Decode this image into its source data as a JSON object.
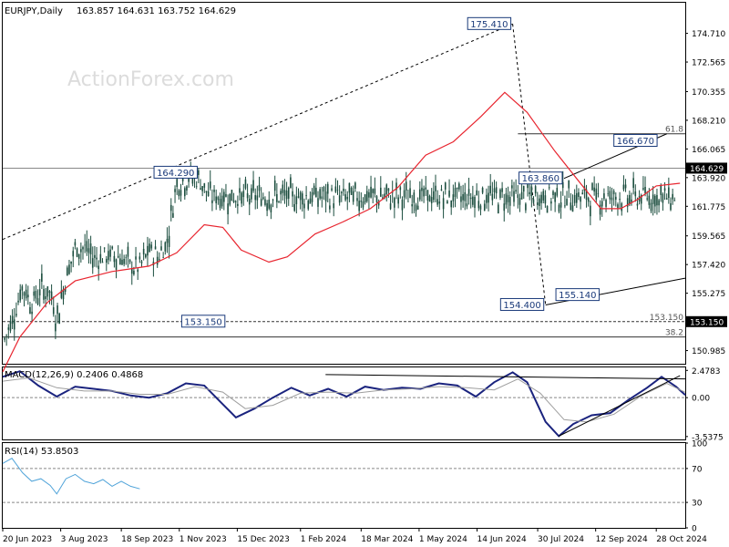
{
  "header": {
    "symbol": "EURJPY,Daily",
    "ohlc": "163.857 164.631 163.752 164.629"
  },
  "watermark": "ActionForex.com",
  "chart_data": [
    {
      "type": "candlestick",
      "panel": "price",
      "current_price": 164.629,
      "current_price_label": "164.629",
      "ylim": [
        150.0,
        177.0
      ],
      "y_ticks": [
        {
          "value": 174.71,
          "label": "174.710"
        },
        {
          "value": 172.565,
          "label": "172.565"
        },
        {
          "value": 170.355,
          "label": "170.355"
        },
        {
          "value": 168.21,
          "label": "168.210"
        },
        {
          "value": 166.065,
          "label": "166.065"
        },
        {
          "value": 163.92,
          "label": "163.920"
        },
        {
          "value": 161.775,
          "label": "161.775"
        },
        {
          "value": 159.565,
          "label": "159.565"
        },
        {
          "value": 157.42,
          "label": "157.420"
        },
        {
          "value": 155.275,
          "label": "155.275"
        },
        {
          "value": 153.065,
          "label": "153.065"
        },
        {
          "value": 150.985,
          "label": "150.985"
        }
      ],
      "price_path": [
        [
          "2023-06-20",
          151.5
        ],
        [
          "2023-06-28",
          153.5
        ],
        [
          "2023-07-05",
          155.8
        ],
        [
          "2023-07-12",
          154.5
        ],
        [
          "2023-07-19",
          155.6
        ],
        [
          "2023-07-26",
          155.3
        ],
        [
          "2023-07-31",
          153.3
        ],
        [
          "2023-08-07",
          156.5
        ],
        [
          "2023-08-14",
          158.6
        ],
        [
          "2023-08-21",
          158.7
        ],
        [
          "2023-08-28",
          157.9
        ],
        [
          "2023-09-04",
          158.0
        ],
        [
          "2023-09-11",
          158.1
        ],
        [
          "2023-09-18",
          158.0
        ],
        [
          "2023-09-25",
          157.3
        ],
        [
          "2023-10-02",
          157.2
        ],
        [
          "2023-10-09",
          158.5
        ],
        [
          "2023-10-16",
          158.0
        ],
        [
          "2023-10-23",
          159.2
        ],
        [
          "2023-10-30",
          163.7
        ],
        [
          "2023-11-03",
          163.6
        ],
        [
          "2023-11-10",
          164.0
        ],
        [
          "2023-11-17",
          163.7
        ],
        [
          "2023-11-24",
          162.5
        ]
      ],
      "moving_average": {
        "name": "",
        "color": "#e8252f",
        "values": [
          [
            "2023-06-20",
            149.4
          ],
          [
            "2023-07-03",
            152.0
          ],
          [
            "2023-07-24",
            154.6
          ],
          [
            "2023-08-14",
            156.2
          ],
          [
            "2023-09-11",
            156.9
          ],
          [
            "2023-10-09",
            157.3
          ],
          [
            "2023-10-30",
            158.3
          ],
          [
            "2023-11-20",
            160.4
          ],
          [
            "2023-12-04",
            160.2
          ],
          [
            "2023-12-18",
            158.5
          ],
          [
            "2024-01-08",
            157.6
          ],
          [
            "2024-01-22",
            158.0
          ],
          [
            "2024-02-12",
            159.7
          ],
          [
            "2024-03-04",
            160.6
          ],
          [
            "2024-03-25",
            161.6
          ],
          [
            "2024-04-15",
            163.2
          ],
          [
            "2024-05-06",
            165.6
          ],
          [
            "2024-05-27",
            166.6
          ],
          [
            "2024-06-17",
            168.5
          ],
          [
            "2024-07-05",
            170.3
          ],
          [
            "2024-07-22",
            168.8
          ],
          [
            "2024-08-12",
            165.9
          ],
          [
            "2024-09-02",
            163.3
          ],
          [
            "2024-09-16",
            161.6
          ],
          [
            "2024-10-01",
            161.6
          ],
          [
            "2024-10-14",
            162.3
          ],
          [
            "2024-10-28",
            163.3
          ],
          [
            "2024-11-15",
            163.5
          ]
        ]
      },
      "annotations": [
        {
          "label": "175.410",
          "date": "2024-07-11",
          "value": 175.41,
          "side": "left"
        },
        {
          "label": "164.290",
          "date": "2023-11-16",
          "value": 164.29,
          "side": "left"
        },
        {
          "label": "153.150",
          "date": "2023-12-07",
          "value": 153.15,
          "side": "left"
        },
        {
          "label": "163.860",
          "date": "2024-08-19",
          "value": 163.86,
          "side": "left"
        },
        {
          "label": "166.670",
          "date": "2024-10-30",
          "value": 166.67,
          "side": "left"
        },
        {
          "label": "154.400",
          "date": "2024-08-05",
          "value": 154.4,
          "side": "left"
        },
        {
          "label": "155.140",
          "date": "2024-09-16",
          "value": 155.14,
          "side": "left"
        }
      ],
      "trendlines": [
        {
          "style": "dashed",
          "from": [
            "2023-06-20",
            159.3
          ],
          "to": [
            "2024-07-11",
            175.41
          ]
        },
        {
          "style": "dashed",
          "from": [
            "2024-07-11",
            175.41
          ],
          "to": [
            "2024-08-05",
            154.4
          ]
        },
        {
          "style": "solid",
          "from": [
            "2024-08-19",
            163.86
          ],
          "to": [
            "2024-11-05",
            167.2
          ]
        },
        {
          "style": "solid",
          "from": [
            "2024-08-05",
            154.4
          ],
          "to": [
            "2024-11-19",
            156.4
          ]
        }
      ],
      "horizontal_lines": [
        {
          "value": 164.629,
          "style": "solid",
          "color": "#888888",
          "label": ""
        },
        {
          "value": 153.15,
          "style": "dashed",
          "color": "#333333",
          "label": "153.150"
        },
        {
          "value": 167.2,
          "style": "solid",
          "color": "#333333",
          "label": "61.8",
          "from": "2024-07-15"
        },
        {
          "value": 152.0,
          "style": "solid",
          "color": "#333333",
          "label": "38.2"
        }
      ]
    },
    {
      "type": "line",
      "panel": "macd",
      "title": "MACD(12,26,9) 0.2406 0.4868",
      "ylim": [
        -3.8,
        2.75
      ],
      "y_ticks": [
        {
          "value": 2.4783,
          "label": "2.4783"
        },
        {
          "value": 0.0,
          "label": "0.00"
        },
        {
          "value": -3.5375,
          "label": "-3.5375"
        }
      ],
      "series": [
        {
          "name": "MACD",
          "color": "#1a237e",
          "values": [
            [
              "2023-06-20",
              1.9
            ],
            [
              "2023-07-03",
              2.4
            ],
            [
              "2023-07-17",
              1.1
            ],
            [
              "2023-07-31",
              0.1
            ],
            [
              "2023-08-14",
              1.0
            ],
            [
              "2023-08-28",
              0.8
            ],
            [
              "2023-09-11",
              0.6
            ],
            [
              "2023-09-25",
              0.2
            ],
            [
              "2023-10-09",
              0.0
            ],
            [
              "2023-10-23",
              0.4
            ],
            [
              "2023-11-06",
              1.3
            ],
            [
              "2023-11-20",
              1.1
            ],
            [
              "2023-12-04",
              -0.6
            ],
            [
              "2023-12-14",
              -1.8
            ],
            [
              "2023-12-28",
              -1.0
            ],
            [
              "2024-01-11",
              0.0
            ],
            [
              "2024-01-25",
              0.9
            ],
            [
              "2024-02-08",
              0.2
            ],
            [
              "2024-02-22",
              0.8
            ],
            [
              "2024-03-07",
              0.1
            ],
            [
              "2024-03-21",
              1.0
            ],
            [
              "2024-04-04",
              0.7
            ],
            [
              "2024-04-18",
              0.9
            ],
            [
              "2024-05-02",
              0.8
            ],
            [
              "2024-05-16",
              1.3
            ],
            [
              "2024-05-30",
              1.1
            ],
            [
              "2024-06-13",
              0.1
            ],
            [
              "2024-06-27",
              1.4
            ],
            [
              "2024-07-11",
              2.3
            ],
            [
              "2024-07-22",
              1.4
            ],
            [
              "2024-08-05",
              -2.2
            ],
            [
              "2024-08-15",
              -3.5
            ],
            [
              "2024-08-26",
              -2.4
            ],
            [
              "2024-09-09",
              -1.6
            ],
            [
              "2024-09-23",
              -1.4
            ],
            [
              "2024-10-07",
              -0.2
            ],
            [
              "2024-10-21",
              0.9
            ],
            [
              "2024-11-01",
              1.9
            ],
            [
              "2024-11-12",
              1.0
            ],
            [
              "2024-11-19",
              0.24
            ]
          ]
        },
        {
          "name": "Signal",
          "color": "#9e9e9e",
          "values": [
            [
              "2023-06-20",
              1.5
            ],
            [
              "2023-07-10",
              1.8
            ],
            [
              "2023-07-31",
              0.9
            ],
            [
              "2023-08-21",
              0.6
            ],
            [
              "2023-09-11",
              0.6
            ],
            [
              "2023-10-02",
              0.3
            ],
            [
              "2023-10-23",
              0.3
            ],
            [
              "2023-11-13",
              1.0
            ],
            [
              "2023-12-04",
              0.5
            ],
            [
              "2023-12-21",
              -1.0
            ],
            [
              "2024-01-11",
              -0.7
            ],
            [
              "2024-02-01",
              0.4
            ],
            [
              "2024-02-22",
              0.5
            ],
            [
              "2024-03-14",
              0.4
            ],
            [
              "2024-04-04",
              0.7
            ],
            [
              "2024-04-25",
              0.8
            ],
            [
              "2024-05-16",
              1.0
            ],
            [
              "2024-06-06",
              0.9
            ],
            [
              "2024-06-27",
              0.7
            ],
            [
              "2024-07-15",
              1.7
            ],
            [
              "2024-08-01",
              0.4
            ],
            [
              "2024-08-19",
              -2.0
            ],
            [
              "2024-09-05",
              -2.2
            ],
            [
              "2024-09-26",
              -1.5
            ],
            [
              "2024-10-17",
              0.2
            ],
            [
              "2024-11-05",
              1.3
            ],
            [
              "2024-11-19",
              0.49
            ]
          ]
        }
      ],
      "trendlines": [
        {
          "from": [
            "2024-02-20",
            2.1
          ],
          "to": [
            "2024-11-19",
            1.7
          ]
        },
        {
          "from": [
            "2024-08-15",
            -3.5
          ],
          "to": [
            "2024-11-15",
            2.0
          ]
        }
      ]
    },
    {
      "type": "line",
      "panel": "rsi",
      "title": "RSI(14) 53.8503",
      "ylim": [
        0,
        100
      ],
      "y_ticks": [
        {
          "value": 100,
          "label": "100"
        },
        {
          "value": 70,
          "label": "70"
        },
        {
          "value": 30,
          "label": "30"
        },
        {
          "value": 0,
          "label": "0"
        }
      ],
      "levels": [
        70,
        30
      ],
      "series": [
        {
          "name": "RSI(14)",
          "color": "#4fa3d9",
          "values": [
            [
              "2023-06-20",
              76
            ],
            [
              "2023-06-27",
              82
            ],
            [
              "2023-07-05",
              65
            ],
            [
              "2023-07-12",
              55
            ],
            [
              "2023-07-19",
              58
            ],
            [
              "2023-07-26",
              50
            ],
            [
              "2023-07-31",
              40
            ],
            [
              "2023-08-07",
              58
            ],
            [
              "2023-08-14",
              63
            ],
            [
              "2023-08-21",
              55
            ],
            [
              "2023-08-28",
              52
            ],
            [
              "2023-09-04",
              57
            ],
            [
              "2023-09-11",
              49
            ],
            [
              "2023-09-18",
              55
            ],
            [
              "2023-09-25",
              49
            ],
            [
              "2023-10-02",
              46
            ]
          ]
        }
      ]
    }
  ],
  "x_axis": {
    "ticks": [
      {
        "date": "2023-06-20",
        "label": "20 Jun 2023"
      },
      {
        "date": "2023-08-03",
        "label": "3 Aug 2023"
      },
      {
        "date": "2023-09-18",
        "label": "18 Sep 2023"
      },
      {
        "date": "2023-11-01",
        "label": "1 Nov 2023"
      },
      {
        "date": "2023-12-15",
        "label": "15 Dec 2023"
      },
      {
        "date": "2024-02-01",
        "label": "1 Feb 2024"
      },
      {
        "date": "2024-03-18",
        "label": "18 Mar 2024"
      },
      {
        "date": "2024-05-01",
        "label": "1 May 2024"
      },
      {
        "date": "2024-06-14",
        "label": "14 Jun 2024"
      },
      {
        "date": "2024-07-30",
        "label": "30 Jul 2024"
      },
      {
        "date": "2024-09-12",
        "label": "12 Sep 2024"
      },
      {
        "date": "2024-10-28",
        "label": "28 Oct 2024"
      }
    ],
    "range": [
      "2023-06-20",
      "2024-11-19"
    ]
  }
}
